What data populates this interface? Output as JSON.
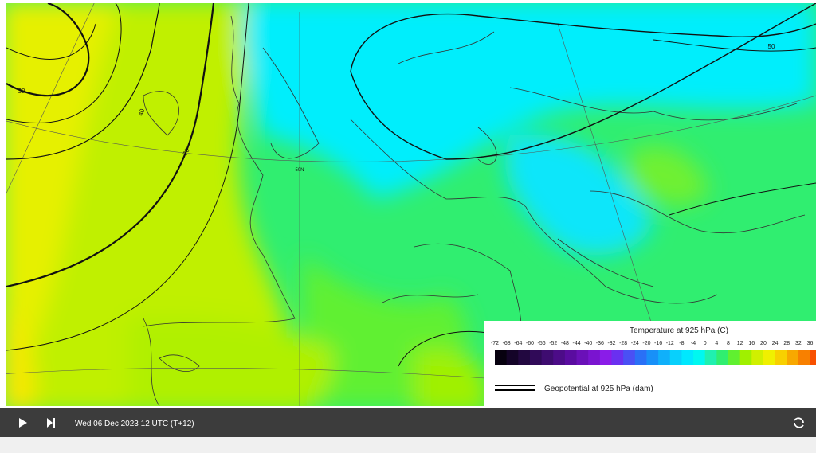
{
  "map": {
    "contour_labels": [
      "30",
      "40",
      "70",
      "50",
      "50N"
    ]
  },
  "legend": {
    "title": "Temperature at 925 hPa (C)",
    "ticks": [
      -72,
      -68,
      -64,
      -60,
      -56,
      -52,
      -48,
      -44,
      -40,
      -36,
      -32,
      -28,
      -24,
      -20,
      -16,
      -12,
      -8,
      -4,
      0,
      4,
      8,
      12,
      16,
      20,
      24,
      28,
      32,
      36
    ],
    "colors": [
      "#07010f",
      "#140428",
      "#220840",
      "#300a58",
      "#3e0c70",
      "#4c0c88",
      "#5a0ca0",
      "#6a10b8",
      "#7a14d0",
      "#8a1ce8",
      "#6a30f0",
      "#4a50f4",
      "#2a70f6",
      "#1890f8",
      "#10b0fa",
      "#08d0fc",
      "#00e8fe",
      "#00f8f0",
      "#20f0b0",
      "#30ee70",
      "#60f030",
      "#a0f000",
      "#d0f000",
      "#f0f000",
      "#f8d000",
      "#f8a800",
      "#f88000",
      "#f85000"
    ],
    "line_label": "Geopotential at 925 hPa (dam)"
  },
  "player": {
    "time": "Wed 06 Dec 2023 12 UTC (T+12)"
  }
}
